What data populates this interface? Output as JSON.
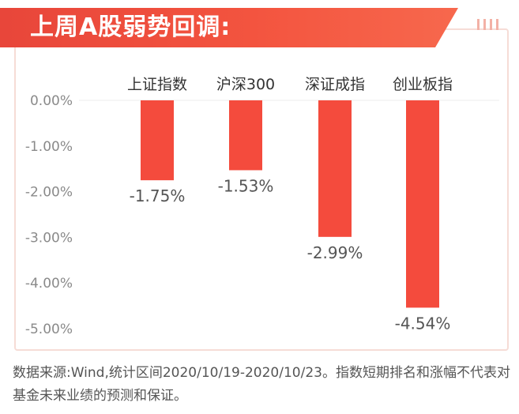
{
  "header": {
    "title": "上周A股弱势回调:"
  },
  "chart_data": {
    "type": "bar",
    "categories": [
      "上证指数",
      "沪深300",
      "深证成指",
      "创业板指"
    ],
    "values": [
      -1.75,
      -1.53,
      -2.99,
      -4.54
    ],
    "value_labels": [
      "-1.75%",
      "-1.53%",
      "-2.99%",
      "-4.54%"
    ],
    "y_ticks": [
      0,
      -1,
      -2,
      -3,
      -4,
      -5
    ],
    "y_tick_labels": [
      "0.00%",
      "-1.00%",
      "-2.00%",
      "-3.00%",
      "-4.00%",
      "-5.00%"
    ],
    "ylim": [
      -5,
      0
    ],
    "title": "",
    "xlabel": "",
    "ylabel": "",
    "grid": false,
    "bar_color": "#f44b3d",
    "category_label_position": "top"
  },
  "footnote": "数据来源:Wind,统计区间2020/10/19-2020/10/23。指数短期排名和涨幅不代表对基金未来业绩的预测和保证。"
}
